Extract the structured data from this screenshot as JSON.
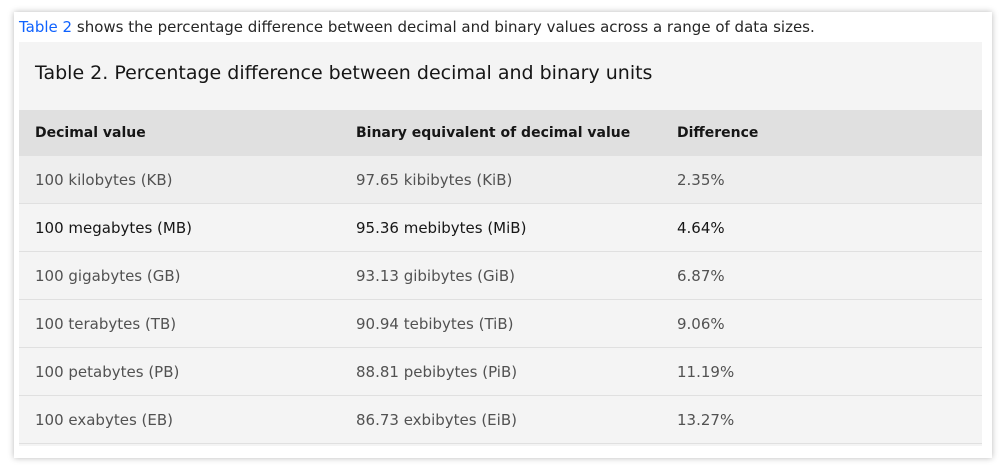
{
  "intro": {
    "link_text": "Table 2",
    "text": " shows the percentage difference between decimal and binary values across a range of data sizes."
  },
  "table": {
    "title": "Table 2. Percentage difference between decimal and binary units",
    "headers": [
      "Decimal value",
      "Binary equivalent of decimal value",
      "Difference"
    ],
    "rows": [
      [
        "100 kilobytes (KB)",
        "97.65 kibibytes (KiB)",
        "2.35%"
      ],
      [
        "100 megabytes (MB)",
        "95.36 mebibytes (MiB)",
        "4.64%"
      ],
      [
        "100 gigabytes (GB)",
        "93.13 gibibytes (GiB)",
        "6.87%"
      ],
      [
        "100 terabytes (TB)",
        "90.94 tebibytes (TiB)",
        "9.06%"
      ],
      [
        "100 petabytes (PB)",
        "88.81 pebibytes (PiB)",
        "11.19%"
      ],
      [
        "100 exabytes (EB)",
        "86.73 exbibytes (EiB)",
        "13.27%"
      ]
    ]
  },
  "colors": {
    "link": "#0f62fe",
    "header_bg": "#e0e0e0",
    "table_bg": "#f4f4f4"
  }
}
